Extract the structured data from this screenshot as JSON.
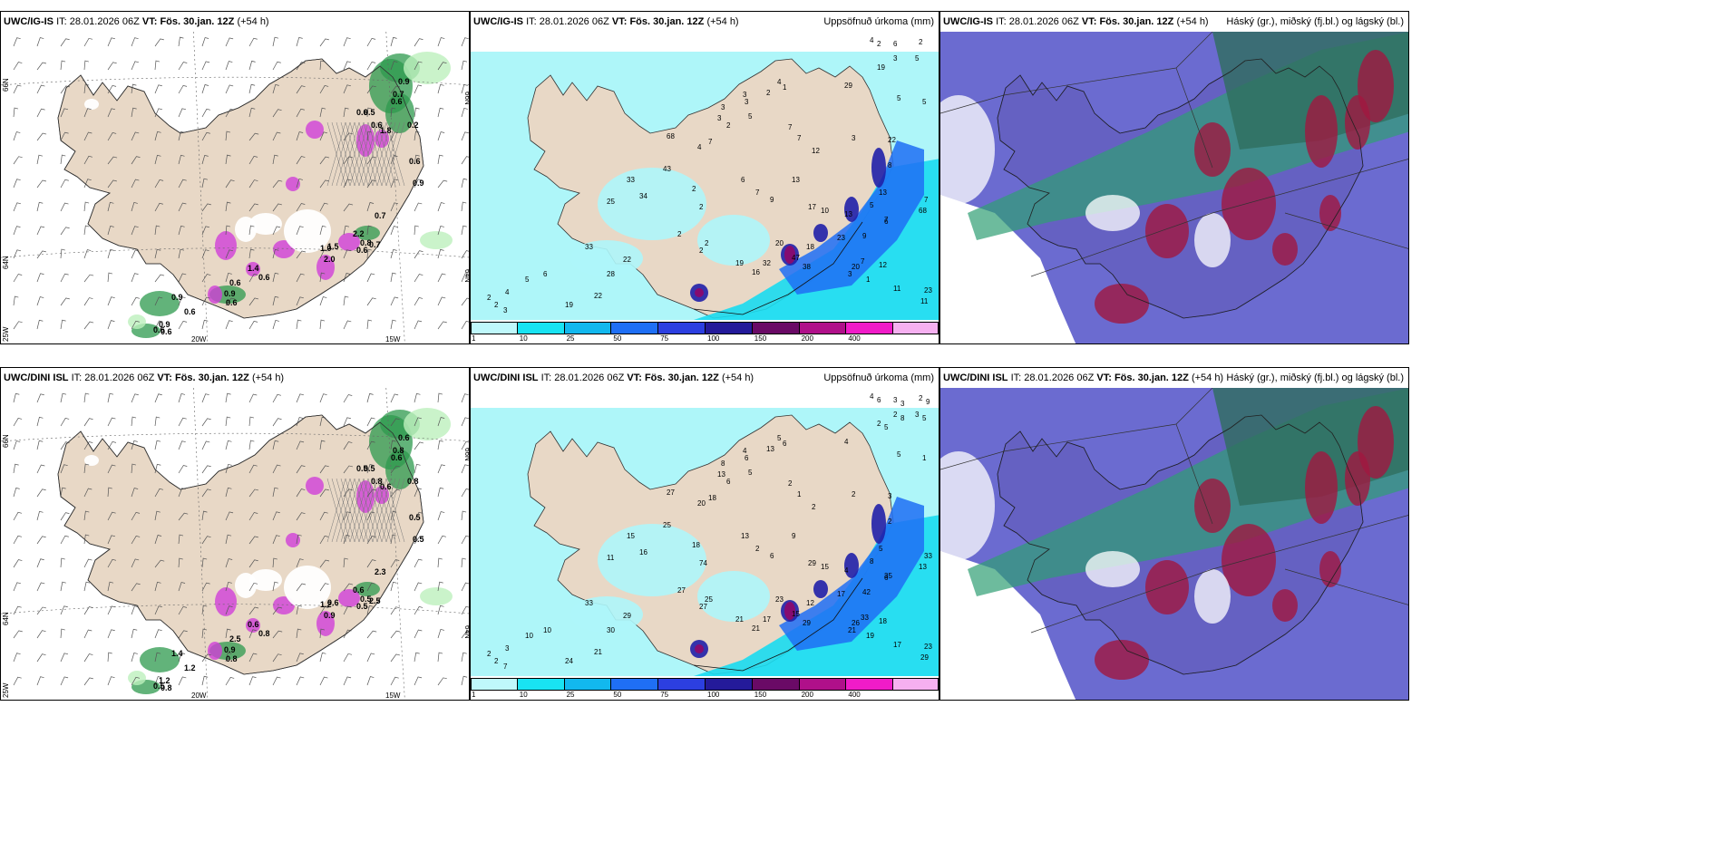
{
  "colors": {
    "land": "#e8d8c6",
    "sea": "#ffffff",
    "precip_light": "#aef6f9",
    "precip_cyan": "#19dbef",
    "precip_blue": "#1f6ff5",
    "precip_dark": "#2020a8",
    "precip_purple": "#8a0a6e",
    "precip_magenta": "#e010c0",
    "snow_green": "#2e9a4e",
    "snow_magenta": "#d040d8",
    "cloud_high": "#2f9e74",
    "cloud_mid": "#3a3ac0",
    "cloud_low": "#a01840"
  },
  "rows": [
    {
      "model": "UWC/IG-IS",
      "init_label": "IT:",
      "init_time": "28.01.2026 06Z",
      "valid_label": "VT:",
      "valid_time": "Fös. 30.jan. 12Z",
      "lead": "(+54 h)",
      "precip_title": "Uppsöfnuð úrkoma (mm)",
      "cloud_title": "Háský (gr.), miðský (fj.bl.) og lágský (bl.)",
      "snow_values": [
        "0.9",
        "0.7",
        "0.6",
        "0.5",
        "0.6",
        "0.2",
        "0.6",
        "1.8",
        "0.6",
        "0.9",
        "0.7",
        "2.2",
        "0.8",
        "0.7",
        "0.6",
        "1.5",
        "1.0",
        "1.4",
        "0.6",
        "2.0",
        "0.6",
        "0.9",
        "0.6",
        "0.9",
        "0.6",
        "0.9",
        "0.6",
        "0.6"
      ],
      "precip_values": [
        "4",
        "6",
        "2",
        "3",
        "5",
        "19",
        "29",
        "5",
        "5",
        "4",
        "2",
        "1",
        "3",
        "3",
        "5",
        "3",
        "3",
        "2",
        "7",
        "7",
        "12",
        "3",
        "22",
        "8",
        "13",
        "13",
        "5",
        "6",
        "68",
        "13",
        "6",
        "7",
        "9",
        "17",
        "10",
        "23",
        "9",
        "7",
        "7",
        "4",
        "7",
        "2",
        "2",
        "2",
        "2",
        "2",
        "19",
        "16",
        "32",
        "20",
        "18",
        "47",
        "38",
        "20",
        "7",
        "3",
        "1",
        "12",
        "11",
        "11",
        "23",
        "68",
        "43",
        "34",
        "33",
        "25",
        "33",
        "28",
        "22",
        "22",
        "19",
        "6",
        "5",
        "4",
        "2",
        "2",
        "3",
        "2"
      ],
      "axis_labels": [
        "66N",
        "64N",
        "25W",
        "20W",
        "15W",
        "66N",
        "64N"
      ]
    },
    {
      "model": "UWC/DINI ISL",
      "init_label": "IT:",
      "init_time": "28.01.2026 06Z",
      "valid_label": "VT:",
      "valid_time": "Fös. 30.jan. 12Z",
      "lead": "(+54 h)",
      "precip_title": "Uppsöfnuð úrkoma (mm)",
      "cloud_title": "Háský (gr.), miðský (fj.bl.) og lágský (bl.)",
      "snow_values": [
        "0.6",
        "0.8",
        "0.6",
        "0.5",
        "0.8",
        "0.8",
        "0.5",
        "0.6",
        "0.5",
        "0.5",
        "2.3",
        "0.6",
        "0.5",
        "2.5",
        "0.5",
        "0.6",
        "1.2",
        "0.6",
        "0.8",
        "0.9",
        "2.5",
        "0.9",
        "0.8",
        "1.4",
        "1.2",
        "1.2",
        "0.5",
        "0.8"
      ],
      "precip_values": [
        "4",
        "3",
        "2",
        "2",
        "3",
        "2",
        "4",
        "5",
        "1",
        "5",
        "13",
        "6",
        "4",
        "6",
        "5",
        "8",
        "13",
        "6",
        "2",
        "1",
        "2",
        "2",
        "3",
        "2",
        "5",
        "4",
        "8",
        "6",
        "13",
        "9",
        "13",
        "2",
        "6",
        "29",
        "15",
        "17",
        "42",
        "35",
        "33",
        "20",
        "18",
        "18",
        "74",
        "25",
        "27",
        "27",
        "21",
        "21",
        "17",
        "23",
        "12",
        "15",
        "29",
        "26",
        "33",
        "21",
        "19",
        "18",
        "17",
        "29",
        "23",
        "27",
        "25",
        "16",
        "15",
        "11",
        "33",
        "30",
        "29",
        "21",
        "24",
        "10",
        "10",
        "3",
        "2",
        "2",
        "7",
        "6",
        "3",
        "9",
        "8",
        "5",
        "5"
      ],
      "axis_labels": [
        "66N",
        "64N",
        "25W",
        "20W",
        "15W",
        "66N",
        "64N"
      ]
    }
  ],
  "colorbar": {
    "labels": [
      "1",
      "10",
      "25",
      "50",
      "75",
      "100",
      "150",
      "200",
      "400"
    ],
    "colors": [
      "#bff8fb",
      "#19e3f2",
      "#12b8ee",
      "#1f6ff5",
      "#2c3fe0",
      "#241a9a",
      "#6a0a66",
      "#b0108a",
      "#f01cc8",
      "#f6b0f0"
    ]
  }
}
